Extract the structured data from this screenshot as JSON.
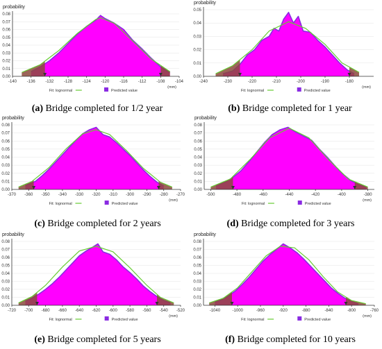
{
  "colors": {
    "histogram": "#ff00ff",
    "fit": "#66cc33",
    "predicted": "#8a2be2",
    "tail": "#8b4a3c"
  },
  "chart_data": [
    {
      "type": "area",
      "panel_letter": "(a)",
      "caption": "Bridge completed for 1/2 year",
      "ylabel": "probability",
      "xunit": "(mm)",
      "xlim": [
        -140,
        -104
      ],
      "x_ticks": [
        -140,
        -136,
        -132,
        -128,
        -124,
        -120,
        -116,
        -112,
        -108,
        -104
      ],
      "ylim": [
        0,
        0.08
      ],
      "y_ticks": [
        0,
        0.01,
        0.02,
        0.03,
        0.04,
        0.05,
        0.06,
        0.07,
        0.08
      ],
      "marker_left": -133,
      "marker_right": -108,
      "peak_x": -121,
      "peak_y": 0.078,
      "legend": {
        "fit": "Fit: lognormal",
        "predicted": "Predicted value"
      },
      "fit": {
        "x": [
          -138,
          -134,
          -130,
          -126,
          -122,
          -121,
          -118,
          -114,
          -110,
          -106
        ],
        "y": [
          0.005,
          0.015,
          0.033,
          0.055,
          0.073,
          0.075,
          0.068,
          0.045,
          0.022,
          0.006
        ]
      },
      "histogram": {
        "x": [
          -136,
          -134,
          -132,
          -130,
          -128,
          -126,
          -124,
          -122,
          -121,
          -120,
          -118,
          -116,
          -114,
          -112,
          -110,
          -108,
          -106
        ],
        "y": [
          0.006,
          0.012,
          0.02,
          0.03,
          0.042,
          0.054,
          0.064,
          0.072,
          0.078,
          0.074,
          0.068,
          0.06,
          0.046,
          0.035,
          0.023,
          0.012,
          0.005
        ]
      }
    },
    {
      "type": "area",
      "panel_letter": "(b)",
      "caption": "Bridge completed for 1 year",
      "ylabel": "probability",
      "xunit": "(mm)",
      "xlim": [
        -240,
        -170
      ],
      "x_ticks": [
        -240,
        -230,
        -220,
        -210,
        -200,
        -190,
        -180
      ],
      "ylim": [
        0,
        0.05
      ],
      "y_ticks": [
        0,
        0.01,
        0.02,
        0.03,
        0.04,
        0.05
      ],
      "marker_left": -225,
      "marker_right": -180,
      "peak_x": -205,
      "peak_y": 0.048,
      "legend": {
        "fit": "Fit: lognormal",
        "predicted": "Predicted value"
      },
      "fit": {
        "x": [
          -235,
          -228,
          -220,
          -213,
          -205,
          -198,
          -190,
          -183,
          -176
        ],
        "y": [
          0.002,
          0.008,
          0.02,
          0.034,
          0.041,
          0.036,
          0.024,
          0.01,
          0.003
        ]
      },
      "histogram": {
        "x": [
          -232,
          -228,
          -225,
          -222,
          -219,
          -216,
          -213,
          -211,
          -209,
          -207,
          -205,
          -203,
          -201,
          -199,
          -196,
          -193,
          -190,
          -187,
          -184,
          -181,
          -178
        ],
        "y": [
          0.002,
          0.004,
          0.009,
          0.016,
          0.02,
          0.027,
          0.03,
          0.036,
          0.034,
          0.043,
          0.048,
          0.04,
          0.045,
          0.034,
          0.033,
          0.027,
          0.022,
          0.016,
          0.01,
          0.005,
          0.002
        ]
      }
    },
    {
      "type": "area",
      "panel_letter": "(c)",
      "caption": "Bridge completed for 2 years",
      "ylabel": "probability",
      "xunit": "(mm)",
      "xlim": [
        -370,
        -270
      ],
      "x_ticks": [
        -370,
        -360,
        -350,
        -340,
        -330,
        -320,
        -310,
        -300,
        -290,
        -280,
        -270
      ],
      "ylim": [
        0,
        0.08
      ],
      "y_ticks": [
        0,
        0.01,
        0.02,
        0.03,
        0.04,
        0.05,
        0.06,
        0.07,
        0.08
      ],
      "marker_left": -357,
      "marker_right": -283,
      "peak_x": -320,
      "peak_y": 0.077,
      "legend": {
        "fit": "Fit: lognormal",
        "predicted": "Predicted value"
      },
      "fit": {
        "x": [
          -366,
          -358,
          -348,
          -338,
          -328,
          -320,
          -312,
          -302,
          -292,
          -282,
          -275
        ],
        "y": [
          0.003,
          0.01,
          0.027,
          0.05,
          0.069,
          0.074,
          0.068,
          0.048,
          0.026,
          0.009,
          0.003
        ]
      },
      "histogram": {
        "x": [
          -362,
          -356,
          -352,
          -348,
          -344,
          -340,
          -336,
          -332,
          -328,
          -324,
          -320,
          -316,
          -312,
          -308,
          -304,
          -300,
          -296,
          -292,
          -288,
          -284,
          -280
        ],
        "y": [
          0.005,
          0.01,
          0.017,
          0.025,
          0.034,
          0.043,
          0.052,
          0.061,
          0.069,
          0.074,
          0.077,
          0.068,
          0.065,
          0.058,
          0.05,
          0.042,
          0.033,
          0.024,
          0.016,
          0.009,
          0.004
        ]
      }
    },
    {
      "type": "area",
      "panel_letter": "(d)",
      "caption": "Bridge completed for 3 years",
      "ylabel": "probability",
      "xunit": "(mm)",
      "xlim": [
        -505,
        -375
      ],
      "x_ticks": [
        -500,
        -480,
        -460,
        -440,
        -420,
        -400,
        -380
      ],
      "ylim": [
        0,
        0.08
      ],
      "y_ticks": [
        0,
        0.01,
        0.02,
        0.03,
        0.04,
        0.05,
        0.06,
        0.07,
        0.08
      ],
      "marker_left": -483,
      "marker_right": -390,
      "peak_x": -440,
      "peak_y": 0.077,
      "legend": {
        "fit": "Fit: lognormal",
        "predicted": "Predicted value"
      },
      "fit": {
        "x": [
          -500,
          -485,
          -470,
          -455,
          -440,
          -425,
          -410,
          -395,
          -380
        ],
        "y": [
          0.003,
          0.013,
          0.037,
          0.064,
          0.076,
          0.064,
          0.037,
          0.013,
          0.003
        ]
      },
      "histogram": {
        "x": [
          -496,
          -489,
          -483,
          -477,
          -471,
          -465,
          -459,
          -453,
          -447,
          -441,
          -435,
          -429,
          -423,
          -417,
          -411,
          -405,
          -399,
          -393,
          -387,
          -381
        ],
        "y": [
          0.005,
          0.009,
          0.015,
          0.023,
          0.034,
          0.046,
          0.058,
          0.068,
          0.074,
          0.077,
          0.071,
          0.066,
          0.061,
          0.05,
          0.04,
          0.029,
          0.019,
          0.011,
          0.006,
          0.003
        ]
      }
    },
    {
      "type": "area",
      "panel_letter": "(e)",
      "caption": "Bridge completed for 5 years",
      "ylabel": "probability",
      "xunit": "(mm)",
      "xlim": [
        -720,
        -520
      ],
      "x_ticks": [
        -720,
        -700,
        -680,
        -660,
        -640,
        -620,
        -600,
        -580,
        -560,
        -540,
        -520
      ],
      "ylim": [
        0,
        0.08
      ],
      "y_ticks": [
        0,
        0.01,
        0.02,
        0.03,
        0.04,
        0.05,
        0.06,
        0.07,
        0.08
      ],
      "marker_left": -690,
      "marker_right": -548,
      "peak_x": -620,
      "peak_y": 0.077,
      "legend": {
        "fit": "Fit: lognormal",
        "predicted": "Predicted value"
      },
      "fit": {
        "x": [
          -712,
          -696,
          -680,
          -660,
          -640,
          -620,
          -600,
          -580,
          -560,
          -544,
          -528
        ],
        "y": [
          0.003,
          0.011,
          0.025,
          0.048,
          0.068,
          0.074,
          0.067,
          0.047,
          0.025,
          0.01,
          0.003
        ]
      },
      "histogram": {
        "x": [
          -704,
          -696,
          -688,
          -680,
          -672,
          -664,
          -656,
          -648,
          -640,
          -632,
          -624,
          -618,
          -612,
          -604,
          -596,
          -588,
          -580,
          -572,
          -564,
          -556,
          -548,
          -540,
          -532
        ],
        "y": [
          0.005,
          0.009,
          0.014,
          0.02,
          0.027,
          0.035,
          0.044,
          0.053,
          0.062,
          0.068,
          0.073,
          0.077,
          0.067,
          0.064,
          0.057,
          0.048,
          0.041,
          0.033,
          0.024,
          0.017,
          0.011,
          0.006,
          0.003
        ]
      }
    },
    {
      "type": "area",
      "panel_letter": "(f)",
      "caption": "Bridge completed for 10 years",
      "ylabel": "probability",
      "xunit": "(mm)",
      "xlim": [
        -1060,
        -760
      ],
      "x_ticks": [
        -1040,
        -1000,
        -960,
        -920,
        -880,
        -840,
        -800,
        -760
      ],
      "ylim": [
        0,
        0.08
      ],
      "y_ticks": [
        0,
        0.01,
        0.02,
        0.03,
        0.04,
        0.05,
        0.06,
        0.07,
        0.08
      ],
      "marker_left": -1010,
      "marker_right": -810,
      "peak_x": -920,
      "peak_y": 0.077,
      "legend": {
        "fit": "Fit: lognormal",
        "predicted": "Predicted value"
      },
      "fit": {
        "x": [
          -1050,
          -1025,
          -1000,
          -975,
          -950,
          -925,
          -900,
          -875,
          -850,
          -825,
          -800,
          -775
        ],
        "y": [
          0.003,
          0.009,
          0.022,
          0.042,
          0.062,
          0.074,
          0.072,
          0.057,
          0.036,
          0.017,
          0.006,
          0.002
        ]
      },
      "histogram": {
        "x": [
          -1040,
          -1028,
          -1016,
          -1004,
          -992,
          -980,
          -968,
          -956,
          -944,
          -932,
          -920,
          -908,
          -896,
          -884,
          -872,
          -860,
          -848,
          -836,
          -824,
          -812,
          -800,
          -788
        ],
        "y": [
          0.004,
          0.007,
          0.012,
          0.018,
          0.026,
          0.035,
          0.045,
          0.055,
          0.063,
          0.07,
          0.077,
          0.072,
          0.066,
          0.058,
          0.049,
          0.04,
          0.031,
          0.022,
          0.015,
          0.009,
          0.005,
          0.002
        ]
      }
    }
  ]
}
